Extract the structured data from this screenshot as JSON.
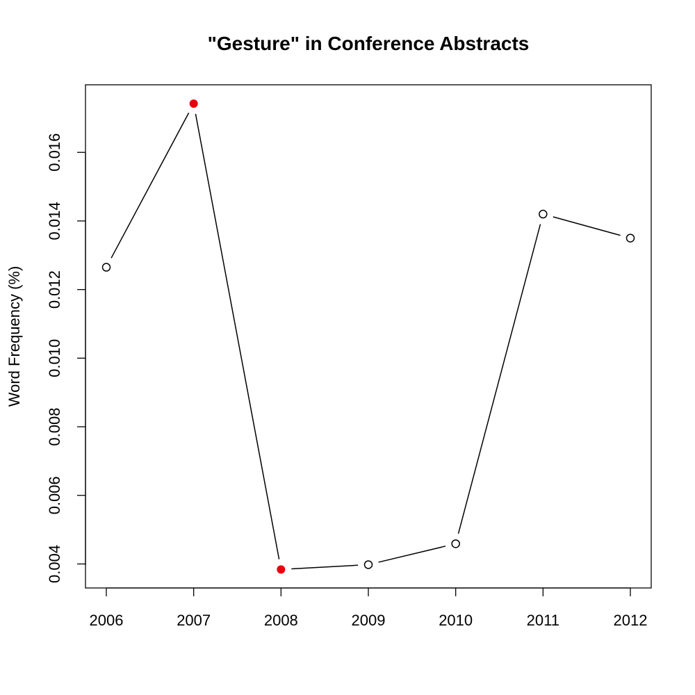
{
  "chart_data": {
    "type": "line",
    "title": "\"Gesture\" in Conference Abstracts",
    "xlabel": "",
    "ylabel": "Word Frequency (%)",
    "x": [
      "2006",
      "2007",
      "2008",
      "2009",
      "2010",
      "2011",
      "2012"
    ],
    "series": [
      {
        "values": [
          0.01265,
          0.01742,
          0.00384,
          0.00398,
          0.00459,
          0.0142,
          0.0135
        ]
      }
    ],
    "highlighted_points": [
      "2007",
      "2008"
    ],
    "yticks": [
      "0.004",
      "0.006",
      "0.008",
      "0.010",
      "0.012",
      "0.014",
      "0.016"
    ],
    "ytick_values": [
      0.004,
      0.006,
      0.008,
      0.01,
      0.012,
      0.014,
      0.016
    ],
    "ylim": [
      0.0033,
      0.01797
    ],
    "grid": false,
    "colors": {
      "line": "#000000",
      "highlight": "#e8000b",
      "marker_fill": "#ffffff"
    }
  }
}
